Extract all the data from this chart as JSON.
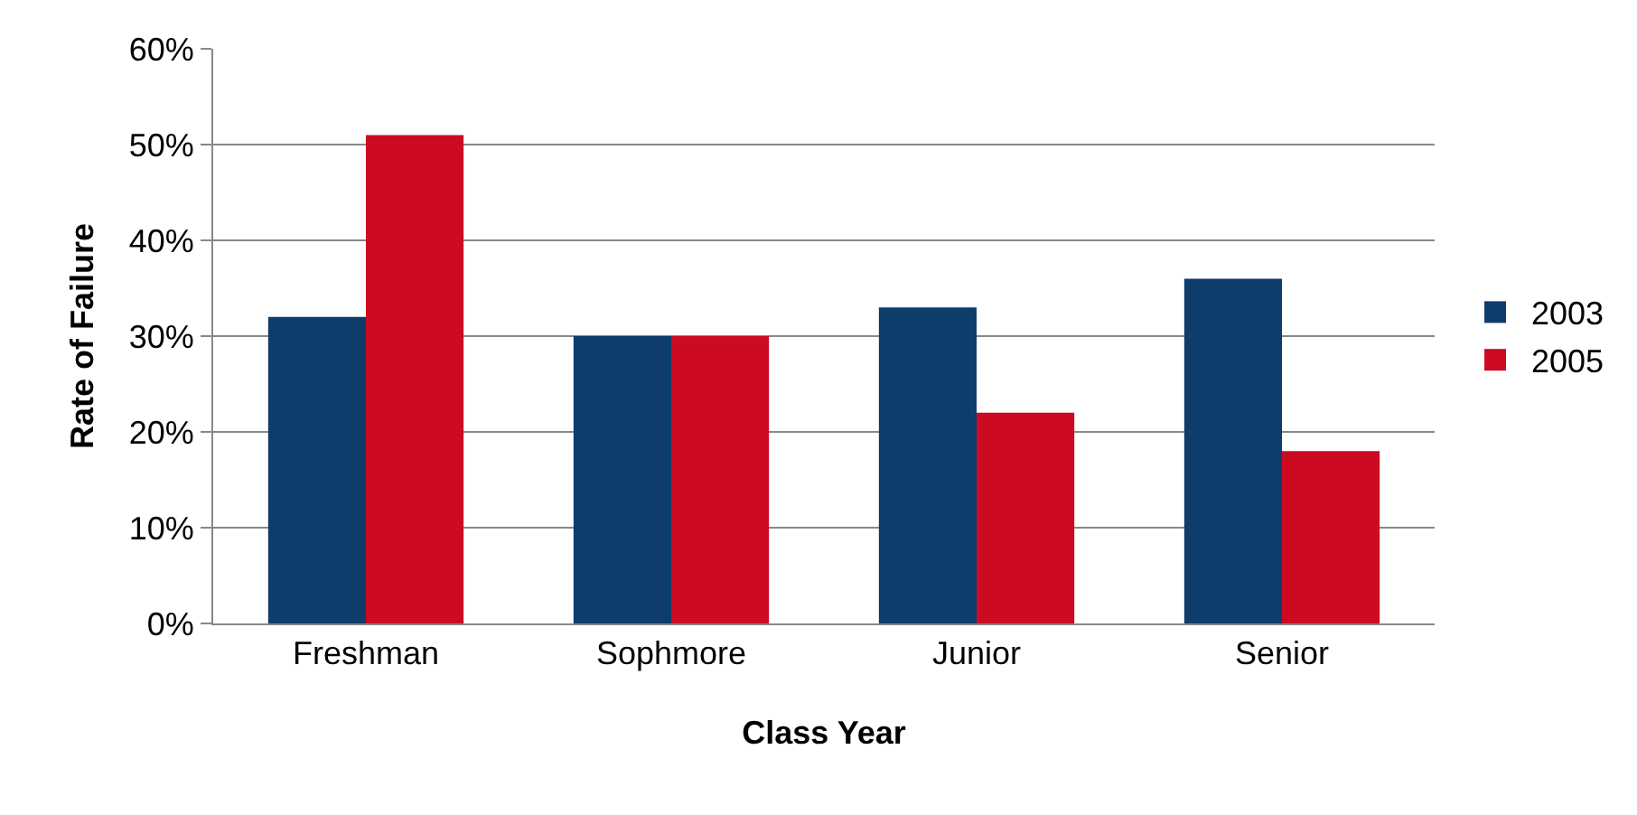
{
  "chart_data": {
    "type": "bar",
    "xlabel": "Class Year",
    "ylabel": "Rate of Failure",
    "categories": [
      "Freshman",
      "Sophmore",
      "Junior",
      "Senior"
    ],
    "series": [
      {
        "name": "2003",
        "color": "#0e3c6b",
        "values": [
          32,
          30,
          33,
          36
        ]
      },
      {
        "name": "2005",
        "color": "#cc0a22",
        "values": [
          51,
          30,
          22,
          18
        ]
      }
    ],
    "ylim": [
      0,
      60
    ],
    "yticks": [
      {
        "value": 0,
        "label": "0%"
      },
      {
        "value": 10,
        "label": "10%"
      },
      {
        "value": 20,
        "label": "20%"
      },
      {
        "value": 30,
        "label": "30%"
      },
      {
        "value": 40,
        "label": "40%"
      },
      {
        "value": 50,
        "label": "50%"
      },
      {
        "value": 60,
        "label": "60%"
      }
    ],
    "grid": "y",
    "legend": "right"
  }
}
